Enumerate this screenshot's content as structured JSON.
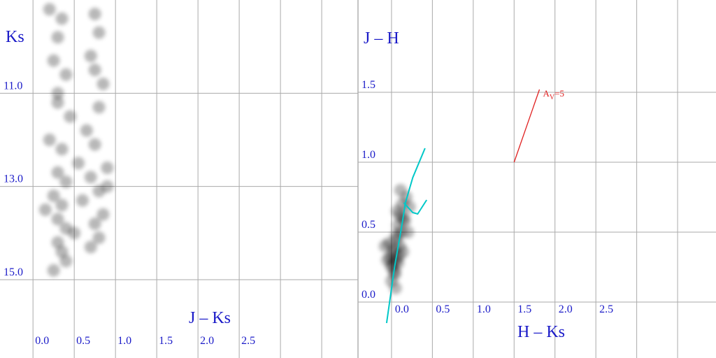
{
  "chart_data": [
    {
      "type": "scatter",
      "xlabel": "J – Ks",
      "ylabel": "Ks",
      "xlim": [
        -0.4,
        3.94
      ],
      "ylim": [
        16.68,
        9.0
      ],
      "xticks": [
        {
          "value": 0,
          "label": "0.0"
        },
        0.5,
        {
          "value": 1,
          "label": "1.0"
        },
        1.5,
        {
          "value": 2,
          "label": "2.0"
        },
        2.5
      ],
      "yticks": [
        {
          "value": 11,
          "label": "11.0"
        },
        {
          "value": 13,
          "label": "13.0"
        },
        {
          "value": 15,
          "label": "15.0"
        }
      ],
      "xgrid": [
        3.0,
        3.5
      ],
      "grid": true,
      "color": "#000000",
      "x": [
        0.2,
        0.35,
        0.3,
        0.75,
        0.8,
        0.25,
        0.4,
        0.7,
        0.85,
        0.3,
        0.45,
        0.8,
        0.65,
        0.2,
        0.35,
        0.75,
        0.9,
        0.3,
        0.4,
        0.7,
        0.8,
        0.25,
        0.35,
        0.6,
        0.85,
        0.3,
        0.4,
        0.75,
        0.15,
        0.5,
        0.3,
        0.35,
        0.8,
        0.7,
        0.4,
        0.25,
        0.9,
        0.55,
        0.3,
        0.75
      ],
      "values": [
        9.2,
        9.4,
        9.8,
        9.3,
        9.7,
        10.3,
        10.6,
        10.2,
        10.8,
        11.2,
        11.5,
        11.3,
        11.8,
        12.0,
        12.2,
        12.1,
        12.6,
        12.7,
        12.9,
        12.8,
        13.1,
        13.2,
        13.4,
        13.3,
        13.6,
        13.7,
        13.9,
        13.8,
        13.5,
        14.0,
        14.2,
        14.4,
        14.1,
        14.3,
        14.6,
        14.8,
        13.0,
        12.5,
        11.0,
        10.5
      ]
    },
    {
      "type": "scatter",
      "xlabel": "H – Ks",
      "ylabel": "J – H",
      "xlim": [
        -0.41,
        3.97
      ],
      "ylim": [
        -0.4,
        2.16
      ],
      "xticks": [
        {
          "value": 0,
          "label": "0.0"
        },
        0.5,
        {
          "value": 1,
          "label": "1.0"
        },
        1.5,
        {
          "value": 2,
          "label": "2.0"
        },
        2.5
      ],
      "yticks": [
        {
          "value": 0,
          "label": "0.0"
        },
        0.5,
        {
          "value": 1,
          "label": "1.0"
        },
        1.5
      ],
      "xgrid": [
        3.0,
        3.5
      ],
      "grid": true,
      "color": "#000000",
      "x": [
        0.0,
        0.05,
        0.02,
        0.08,
        -0.02,
        0.04,
        0.1,
        0.06,
        0.0,
        0.12,
        0.15,
        0.08,
        -0.05,
        0.03,
        0.07,
        0.13,
        0.18,
        0.1,
        0.2,
        0.05,
        -0.03,
        0.09,
        0.11,
        0.16,
        0.01,
        0.06,
        0.14,
        0.04,
        0.22,
        -0.08
      ],
      "values": [
        0.25,
        0.3,
        0.35,
        0.28,
        0.32,
        0.2,
        0.4,
        0.45,
        0.15,
        0.5,
        0.6,
        0.55,
        0.3,
        0.38,
        0.65,
        0.7,
        0.75,
        0.62,
        0.5,
        0.1,
        0.42,
        0.33,
        0.8,
        0.58,
        0.27,
        0.48,
        0.36,
        0.22,
        0.68,
        0.4
      ],
      "lines": [
        {
          "color": "#00c8c8",
          "x": [
            -0.06,
            0.04,
            0.13,
            0.17,
            0.26,
            0.41
          ],
          "values": [
            -0.15,
            0.26,
            0.56,
            0.71,
            0.89,
            1.1
          ]
        },
        {
          "color": "#00c8c8",
          "x": [
            0.15,
            0.26,
            0.32,
            0.43
          ],
          "values": [
            0.71,
            0.64,
            0.63,
            0.73
          ]
        }
      ],
      "vector": {
        "color": "#e02020",
        "x": [
          1.5,
          1.81
        ],
        "values": [
          1.0,
          1.52
        ],
        "label": [
          "A",
          "V",
          "=5"
        ]
      }
    }
  ]
}
